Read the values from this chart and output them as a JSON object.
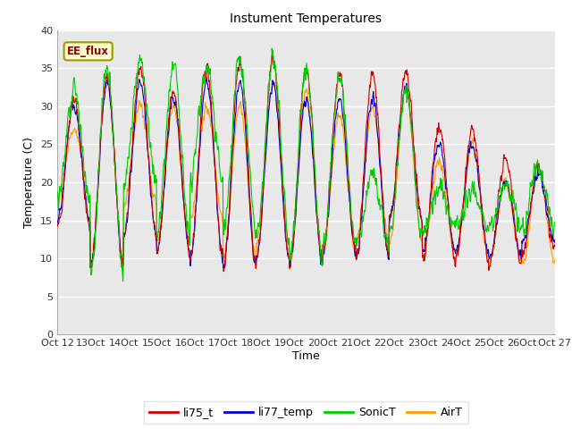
{
  "title": "Instument Temperatures",
  "xlabel": "Time",
  "ylabel": "Temperature (C)",
  "ylim": [
    0,
    40
  ],
  "yticks": [
    0,
    5,
    10,
    15,
    20,
    25,
    30,
    35,
    40
  ],
  "colors": {
    "li75_t": "#cc0000",
    "li77_temp": "#0000cc",
    "SonicT": "#00cc00",
    "AirT": "#ff9900"
  },
  "bg_color": "#e8e8e8",
  "n_days": 15,
  "n_points_per_day": 96,
  "seed": 42,
  "annotation_text": "EE_flux",
  "li75_peaks": [
    31,
    34,
    35,
    32,
    35,
    36,
    36,
    35,
    34,
    34,
    34,
    27,
    27,
    23,
    22
  ],
  "li75_mins": [
    14,
    9,
    13,
    11,
    10,
    9,
    10,
    9.5,
    11,
    10,
    15,
    10,
    10,
    9,
    11
  ],
  "li77_peaks": [
    30,
    33,
    33,
    31,
    33,
    33,
    33,
    31,
    31,
    31,
    32,
    25,
    25,
    20,
    21
  ],
  "li77_mins": [
    15,
    9,
    13,
    11,
    10,
    9,
    10,
    9.5,
    11,
    10,
    15,
    11,
    11,
    10,
    12
  ],
  "sonic_peaks": [
    32,
    35,
    36,
    35,
    35,
    36,
    36,
    35,
    34,
    21,
    32,
    19,
    19,
    20,
    22
  ],
  "sonic_mins": [
    18,
    8,
    20,
    13,
    20,
    14,
    13,
    10,
    12,
    12,
    13,
    14,
    14,
    14,
    14
  ],
  "air_peaks": [
    27,
    33,
    30,
    30,
    30,
    30,
    33,
    32,
    29,
    30,
    32,
    23,
    25,
    20,
    21
  ],
  "air_mins": [
    18,
    9,
    17,
    12,
    15,
    10,
    12,
    9,
    11,
    12,
    12,
    10,
    10,
    9.5,
    9.5
  ]
}
